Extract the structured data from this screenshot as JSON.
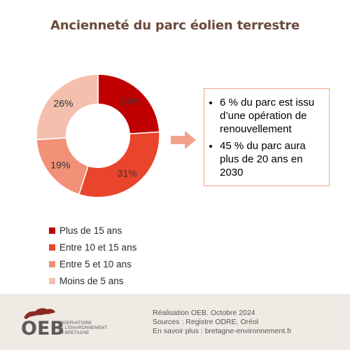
{
  "title": "Ancienneté du parc éolien terrestre",
  "chart_data": {
    "type": "pie",
    "title": "Ancienneté du parc éolien terrestre",
    "categories": [
      "Plus de 15 ans",
      "Entre 10 et 15 ans",
      "Entre 5 et 10 ans",
      "Moins de 5 ans"
    ],
    "values": [
      24,
      31,
      19,
      26
    ],
    "labels": [
      "24%",
      "31%",
      "19%",
      "26%"
    ],
    "colors": [
      "#c00000",
      "#e8452c",
      "#f19178",
      "#f5bfae"
    ],
    "donut": true,
    "legend_position": "bottom-left"
  },
  "callout": {
    "items": [
      "6 % du parc est issu d’une opération de renouvellement",
      "45 % du parc aura plus de 20 ans en 2030"
    ]
  },
  "arrow_color": "#f0a28a",
  "footer": {
    "logo_text": "OEB",
    "logo_sub": [
      "Observatoire",
      "de l’environnement",
      "en Bretagne"
    ],
    "realisation": "Réalisation OEB. Octobre 2024",
    "sources": "Sources : Registre ODRE, Oréol",
    "more": "En savoir plus : bretagne-environnement.fr"
  }
}
